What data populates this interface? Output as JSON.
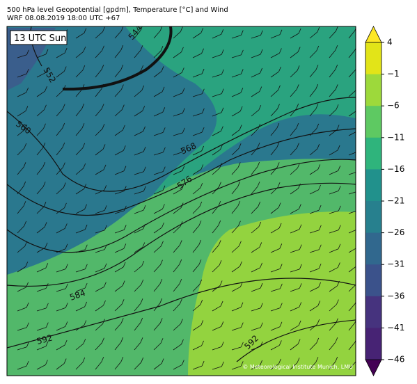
{
  "header": {
    "title_line_1": "500 hPa level Geopotential [gpdm], Temperature [°C] and Wind",
    "title_line_2": "WRF 08.08.2019 18:00 UTC +67"
  },
  "map": {
    "time_label": "13 UTC Sun",
    "contour_labels": [
      "544",
      "552",
      "560",
      "568",
      "576",
      "584",
      "592",
      "592"
    ],
    "credit": "© Meteorological Institute Munich, LMU"
  },
  "colorbar": {
    "tick_labels": [
      "4",
      "−1",
      "−6",
      "−11",
      "−16",
      "−21",
      "−26",
      "−31",
      "−36",
      "−41",
      "−46"
    ]
  }
}
